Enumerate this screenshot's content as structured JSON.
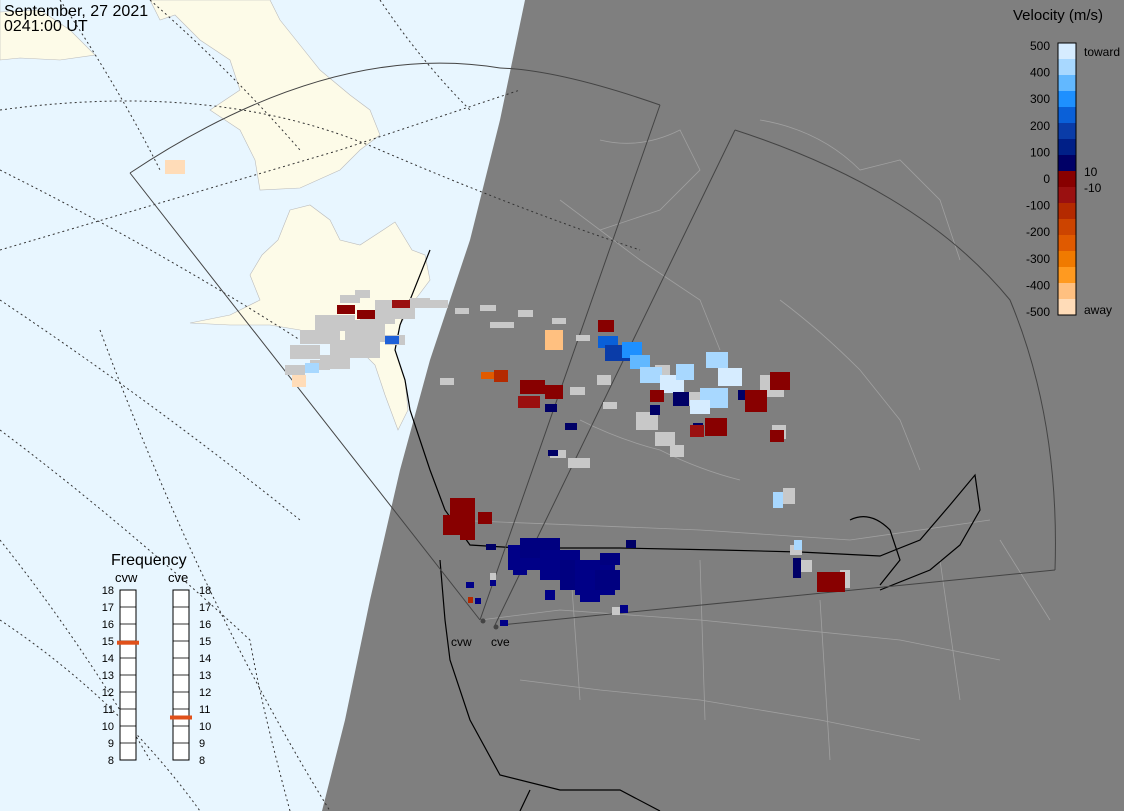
{
  "header": {
    "date": "September, 27 2021",
    "time": "0241:00 UT"
  },
  "colors": {
    "ocean": "#e8f6ff",
    "land": "#fdfbe8",
    "night": "#7f7f7f",
    "ground_scatter": "#c8c8c8",
    "marker": "#e0501a"
  },
  "velocity_scale": {
    "title": "Velocity (m/s)",
    "ticks": [
      "500",
      "400",
      "300",
      "200",
      "100",
      "0",
      "-100",
      "-200",
      "-300",
      "-400",
      "-500"
    ],
    "inner_labels": [
      "10",
      "-10"
    ],
    "toward_label": "toward",
    "away_label": "away",
    "colors": [
      "#d6ecff",
      "#a8d8ff",
      "#62b8ff",
      "#1e90ff",
      "#0a60d8",
      "#0a3ca8",
      "#001f87",
      "#000066",
      "#880000",
      "#9a1010",
      "#b42a00",
      "#cc4400",
      "#e05a00",
      "#f07a00",
      "#ff9a20",
      "#ffc080",
      "#ffdcb8"
    ]
  },
  "frequency_panel": {
    "title": "Frequency",
    "radar_labels": [
      "cvw",
      "cve"
    ],
    "ticks": [
      "18",
      "17",
      "16",
      "15",
      "14",
      "13",
      "12",
      "11",
      "10",
      "9",
      "8"
    ],
    "values_mhz": [
      14.9,
      10.5
    ]
  },
  "radar_sites": [
    "cvw",
    "cve"
  ]
}
